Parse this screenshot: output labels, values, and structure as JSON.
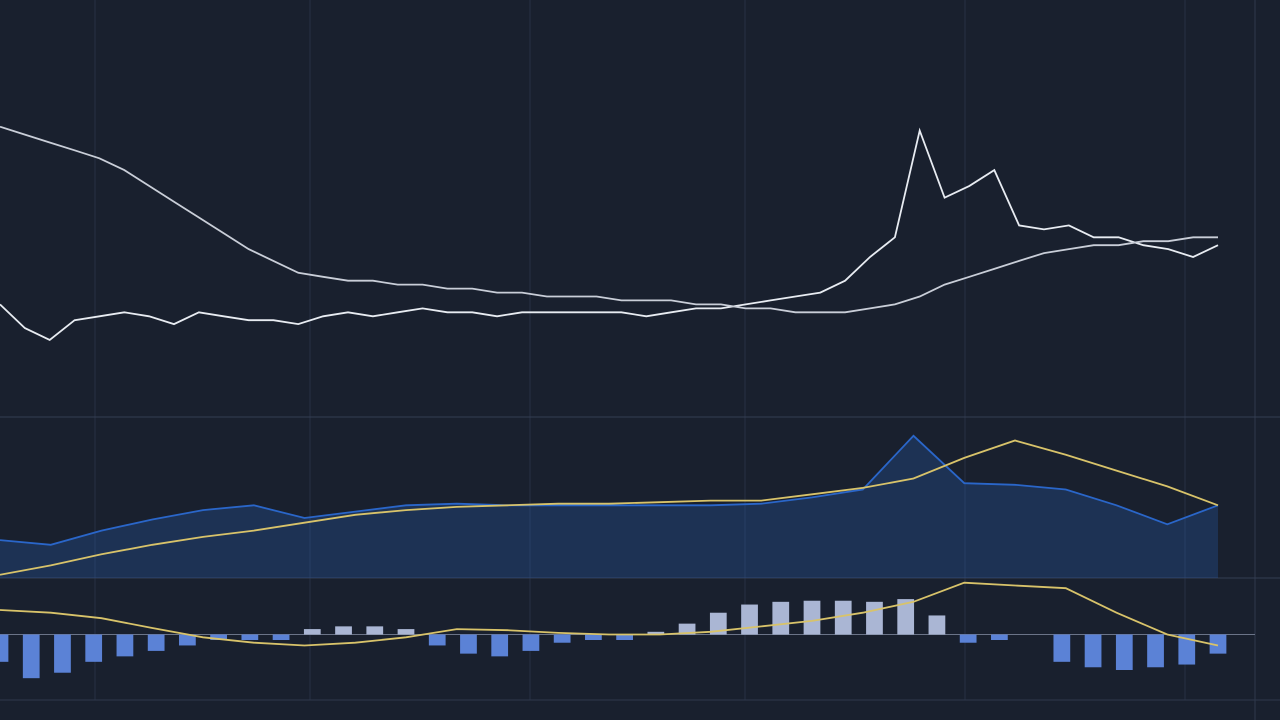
{
  "chart_data": [
    {
      "type": "line",
      "ylim": [
        0,
        100
      ],
      "series": [
        {
          "color": "#e8ecf2",
          "values": [
            28,
            22,
            19,
            24,
            25,
            26,
            25,
            23,
            26,
            25,
            24,
            24,
            23,
            25,
            26,
            25,
            26,
            27,
            26,
            26,
            25,
            26,
            26,
            26,
            26,
            26,
            25,
            26,
            27,
            27,
            28,
            29,
            30,
            31,
            34,
            40,
            45,
            72,
            55,
            58,
            62,
            48,
            47,
            48,
            45,
            45,
            43,
            42,
            40,
            43
          ]
        },
        {
          "color": "#c9ced8",
          "values": [
            73,
            71,
            69,
            67,
            65,
            62,
            58,
            54,
            50,
            46,
            42,
            39,
            36,
            35,
            34,
            34,
            33,
            33,
            32,
            32,
            31,
            31,
            30,
            30,
            30,
            29,
            29,
            29,
            28,
            28,
            27,
            27,
            26,
            26,
            26,
            27,
            28,
            30,
            33,
            35,
            37,
            39,
            41,
            42,
            43,
            43,
            44,
            44,
            45,
            45
          ]
        }
      ]
    },
    {
      "type": "area",
      "ylim": [
        0,
        100
      ],
      "series": [
        {
          "color": "#2a66c9",
          "values": [
            24,
            21,
            30,
            37,
            43,
            46,
            38,
            42,
            46,
            47,
            46,
            46,
            46,
            46,
            46,
            47,
            51,
            56,
            90,
            60,
            59,
            56,
            46,
            34,
            46
          ]
        },
        {
          "color": "#d8c36a",
          "values": [
            2,
            8,
            15,
            21,
            26,
            30,
            35,
            40,
            43,
            45,
            46,
            47,
            47,
            48,
            49,
            49,
            53,
            57,
            63,
            76,
            87,
            78,
            68,
            58,
            46
          ]
        }
      ]
    },
    {
      "type": "bar",
      "ylim": [
        -1.2,
        1.0
      ],
      "color": "#5b82d6",
      "values": [
        -0.5,
        -0.8,
        -0.7,
        -0.5,
        -0.4,
        -0.3,
        -0.2,
        -0.1,
        -0.1,
        -0.1,
        0.1,
        0.15,
        0.15,
        0.1,
        -0.2,
        -0.35,
        -0.4,
        -0.3,
        -0.15,
        -0.1,
        -0.1,
        0.05,
        0.2,
        0.4,
        0.55,
        0.6,
        0.62,
        0.62,
        0.6,
        0.65,
        0.35,
        -0.15,
        -0.1,
        0.0,
        -0.5,
        -0.6,
        -0.65,
        -0.6,
        -0.55,
        -0.35
      ],
      "series": [
        {
          "color": "#d8c36a",
          "values": [
            0.45,
            0.4,
            0.3,
            0.12,
            -0.05,
            -0.15,
            -0.2,
            -0.15,
            -0.05,
            0.1,
            0.08,
            0.03,
            0.0,
            0.0,
            0.05,
            0.15,
            0.25,
            0.4,
            0.6,
            0.95,
            0.9,
            0.85,
            0.4,
            0.0,
            -0.2
          ]
        }
      ]
    }
  ]
}
